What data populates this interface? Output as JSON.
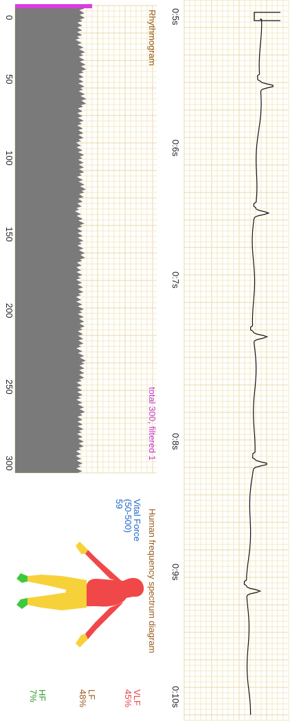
{
  "ecg": {
    "time_labels": [
      "0:5s",
      "0:6s",
      "0:7s",
      "0:8s",
      "0:9s",
      "0:10s"
    ]
  },
  "rhythmogram": {
    "title": "Rhythmogram",
    "status": "total 300, filtered 1",
    "x_ticks": [
      "0",
      "50",
      "100",
      "150",
      "200",
      "250",
      "300"
    ]
  },
  "diagram": {
    "title": "Human frequency spectrum diagram",
    "vital_force_label": "Vital Force",
    "vital_force_range": "(50-500)",
    "vital_force_value": "59",
    "vlf_label": "VLF",
    "vlf_value": "45%",
    "lf_label": "LF",
    "lf_value": "48%",
    "hf_label": "HF",
    "hf_value": "7%"
  },
  "colors": {
    "grid_minor": "#f3e9c6",
    "grid_major": "#e8d8a6",
    "bars": "#7a7a7a",
    "accent": "#d93ee0",
    "vlf": "#f04848",
    "lf": "#f7d13a",
    "hf": "#3ec83e"
  },
  "chart_data": [
    {
      "type": "line",
      "x": [
        5,
        5.25,
        5.5,
        5.75,
        6,
        6.25,
        6.5,
        6.75,
        7,
        7.25,
        7.5,
        7.75,
        8,
        8.25,
        8.5,
        8.75,
        9,
        9.25,
        9.5,
        9.75,
        10
      ],
      "values": [
        0,
        0,
        0.1,
        0,
        0,
        0,
        0.1,
        0,
        0,
        0,
        0.1,
        0,
        0,
        0,
        0.1,
        0,
        0,
        0.1,
        0,
        0,
        0
      ]
    },
    {
      "type": "bar",
      "x_range": [
        0,
        300
      ],
      "categories": [
        0,
        10,
        20,
        30,
        40,
        50,
        60,
        70,
        80,
        90,
        100,
        110,
        120,
        130,
        140,
        150,
        160,
        170,
        180,
        190,
        200,
        210,
        220,
        230,
        240,
        250,
        260,
        270,
        280,
        290,
        300
      ],
      "values": [
        98,
        96,
        92,
        97,
        99,
        95,
        100,
        94,
        96,
        93,
        97,
        95,
        99,
        91,
        96,
        94,
        98,
        92,
        95,
        93,
        97,
        96,
        94,
        99,
        95,
        93,
        97,
        94,
        96,
        92,
        95
      ]
    },
    {
      "type": "pie",
      "categories": [
        "VLF",
        "LF",
        "HF"
      ],
      "values": [
        45,
        48,
        7
      ]
    }
  ]
}
